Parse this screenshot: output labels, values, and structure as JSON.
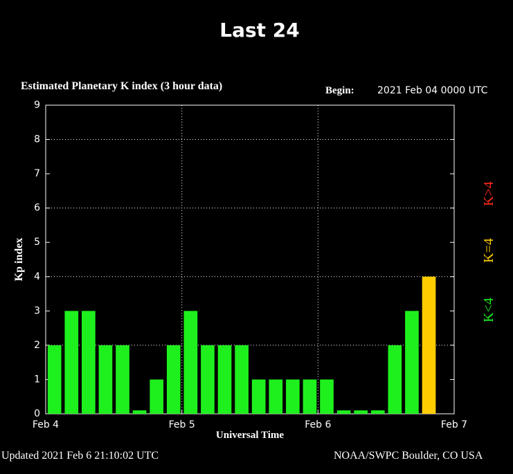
{
  "header": {
    "title": "Last 24"
  },
  "chart_data": {
    "type": "bar",
    "title": "Estimated Planetary K index (3 hour data)",
    "begin_label": "Begin:",
    "begin_value": "2021 Feb 04 0000 UTC",
    "x_label": "Universal Time",
    "y_label": "Kp index",
    "x": [
      0,
      3,
      6,
      9,
      12,
      15,
      18,
      21,
      24,
      27,
      30,
      33,
      36,
      39,
      42,
      45,
      48,
      51,
      54,
      57,
      60,
      63,
      66
    ],
    "values": [
      2,
      3,
      3,
      2,
      2,
      0.1,
      1,
      2,
      3,
      2,
      2,
      2,
      1,
      1,
      1,
      1,
      1,
      0.1,
      0.1,
      0.1,
      2,
      3,
      4
    ],
    "colors": [
      "#1ef01e",
      "#1ef01e",
      "#1ef01e",
      "#1ef01e",
      "#1ef01e",
      "#1ef01e",
      "#1ef01e",
      "#1ef01e",
      "#1ef01e",
      "#1ef01e",
      "#1ef01e",
      "#1ef01e",
      "#1ef01e",
      "#1ef01e",
      "#1ef01e",
      "#1ef01e",
      "#1ef01e",
      "#1ef01e",
      "#1ef01e",
      "#1ef01e",
      "#1ef01e",
      "#1ef01e",
      "#ffcc00"
    ],
    "xlim": [
      0,
      72
    ],
    "xticks": [
      {
        "value": 0,
        "label": "Feb 4"
      },
      {
        "value": 24,
        "label": "Feb 5"
      },
      {
        "value": 48,
        "label": "Feb 6"
      },
      {
        "value": 72,
        "label": "Feb 7"
      }
    ],
    "ylim": [
      0,
      9
    ],
    "yticks": [
      0,
      1,
      2,
      3,
      4,
      5,
      6,
      7,
      8,
      9
    ],
    "grid": true,
    "legend": [
      {
        "name": "K<4",
        "color": "#1ef01e"
      },
      {
        "name": "K=4",
        "color": "#ffcc00"
      },
      {
        "name": "K>4",
        "color": "#ff2a1a"
      }
    ]
  },
  "footer": {
    "updated": "Updated 2021 Feb  6 21:10:02 UTC",
    "credit": "NOAA/SWPC Boulder, CO USA"
  }
}
